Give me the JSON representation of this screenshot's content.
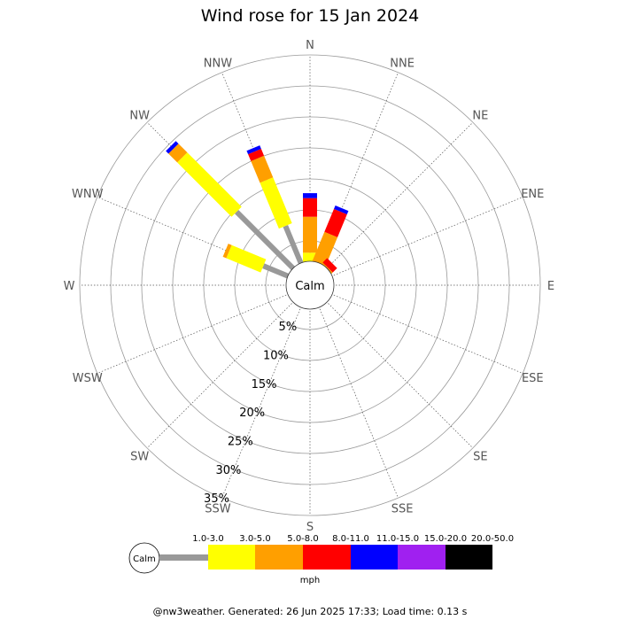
{
  "chart_data": {
    "type": "wind-rose",
    "title": "Wind rose for 15 Jan 2024",
    "directions": [
      "N",
      "NNE",
      "NE",
      "ENE",
      "E",
      "ESE",
      "SE",
      "SSE",
      "S",
      "SSW",
      "SW",
      "WSW",
      "W",
      "WNW",
      "NW",
      "NNW"
    ],
    "radial_unit": "%",
    "radial_max": 35,
    "radial_ticks": [
      5,
      10,
      15,
      20,
      25,
      30,
      35
    ],
    "radial_tick_labels": [
      "5%",
      "10%",
      "15%",
      "20%",
      "25%",
      "30%",
      "35%"
    ],
    "center_label": "Calm",
    "speed_unit": "mph",
    "speed_bins": [
      {
        "label": "1.0-3.0",
        "color": "#999999"
      },
      {
        "label": "3.0-5.0",
        "color": "#ffff00"
      },
      {
        "label": "5.0-8.0",
        "color": "#ff9f00"
      },
      {
        "label": "8.0-11.0",
        "color": "#ff0000"
      },
      {
        "label": "11.0-15.0",
        "color": "#0000ff"
      },
      {
        "label": "15.0-20.0",
        "color": "#a020f0"
      },
      {
        "label": "20.0-50.0",
        "color": "#000000"
      }
    ],
    "series": [
      {
        "direction": "N",
        "values": [
          0.5,
          2.6,
          5.8,
          3.0,
          0.8,
          0,
          0
        ]
      },
      {
        "direction": "NNE",
        "values": [
          0.5,
          1.0,
          5.2,
          4.0,
          0.6,
          0,
          0
        ]
      },
      {
        "direction": "NE",
        "values": [
          0.8,
          0.5,
          0.6,
          1.0,
          0,
          0,
          0
        ]
      },
      {
        "direction": "ENE",
        "values": [
          0,
          0,
          0,
          0,
          0,
          0,
          0
        ]
      },
      {
        "direction": "E",
        "values": [
          0,
          0,
          0,
          0,
          0,
          0,
          0
        ]
      },
      {
        "direction": "ESE",
        "values": [
          0,
          0,
          0,
          0,
          0,
          0,
          0
        ]
      },
      {
        "direction": "SE",
        "values": [
          0,
          0,
          0,
          0,
          0,
          0,
          0
        ]
      },
      {
        "direction": "SSE",
        "values": [
          0,
          0,
          0,
          0,
          0,
          0,
          0
        ]
      },
      {
        "direction": "S",
        "values": [
          0,
          0,
          0,
          0,
          0,
          0,
          0
        ]
      },
      {
        "direction": "SSW",
        "values": [
          0,
          0,
          0,
          0,
          0,
          0,
          0
        ]
      },
      {
        "direction": "SW",
        "values": [
          0,
          0,
          0,
          0,
          0,
          0,
          0
        ]
      },
      {
        "direction": "WSW",
        "values": [
          0,
          0,
          0,
          0,
          0,
          0,
          0
        ]
      },
      {
        "direction": "W",
        "values": [
          0,
          1.0,
          0.6,
          0,
          0,
          0,
          0
        ]
      },
      {
        "direction": "WNW",
        "values": [
          6.0,
          6.0,
          0.6,
          0,
          0,
          0,
          0
        ]
      },
      {
        "direction": "NW",
        "values": [
          14.6,
          12.4,
          2.0,
          0,
          0.6,
          0,
          0
        ]
      },
      {
        "direction": "NNW",
        "values": [
          8.2,
          8.0,
          3.8,
          1.2,
          0.6,
          0,
          0
        ]
      }
    ]
  },
  "footer_text": "@nw3weather. Generated: 26 Jun 2025 17:33; Load time: 0.13 s",
  "colors": {
    "grid": "#999999",
    "label": "#555555"
  }
}
